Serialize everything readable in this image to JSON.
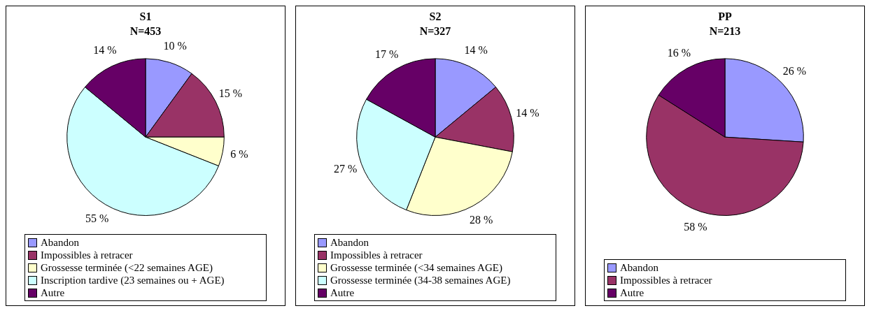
{
  "chart_data": [
    {
      "type": "pie",
      "title": "S1",
      "subtitle": "N=453",
      "categories": [
        "Abandon",
        "Impossibles à retracer",
        "Grossesse terminée (<22 semaines AGE)",
        "Inscription tardive (23 semaines ou + AGE)",
        "Autre"
      ],
      "values": [
        10,
        15,
        6,
        55,
        14
      ],
      "value_labels": [
        "10 %",
        "15 %",
        "6 %",
        "55 %",
        "14 %"
      ],
      "colors": [
        "#9999ff",
        "#993366",
        "#ffffcc",
        "#ccffff",
        "#660066"
      ],
      "legend": "bottom"
    },
    {
      "type": "pie",
      "title": "S2",
      "subtitle": "N=327",
      "categories": [
        "Abandon",
        "Impossibles à retracer",
        "Grossesse terminée (<34 semaines AGE)",
        "Grossesse  terminée (34-38 semaines AGE)",
        "Autre"
      ],
      "values": [
        14,
        14,
        28,
        27,
        17
      ],
      "value_labels": [
        "14 %",
        "14 %",
        "28 %",
        "27 %",
        "17 %"
      ],
      "colors": [
        "#9999ff",
        "#993366",
        "#ffffcc",
        "#ccffff",
        "#660066"
      ],
      "legend": "bottom"
    },
    {
      "type": "pie",
      "title": "PP",
      "subtitle": "N=213",
      "categories": [
        "Abandon",
        "Impossibles à retracer",
        "Autre"
      ],
      "values": [
        26,
        58,
        16
      ],
      "value_labels": [
        "26 %",
        "58 %",
        "16 %"
      ],
      "colors": [
        "#9999ff",
        "#993366",
        "#660066"
      ],
      "legend": "bottom"
    }
  ]
}
